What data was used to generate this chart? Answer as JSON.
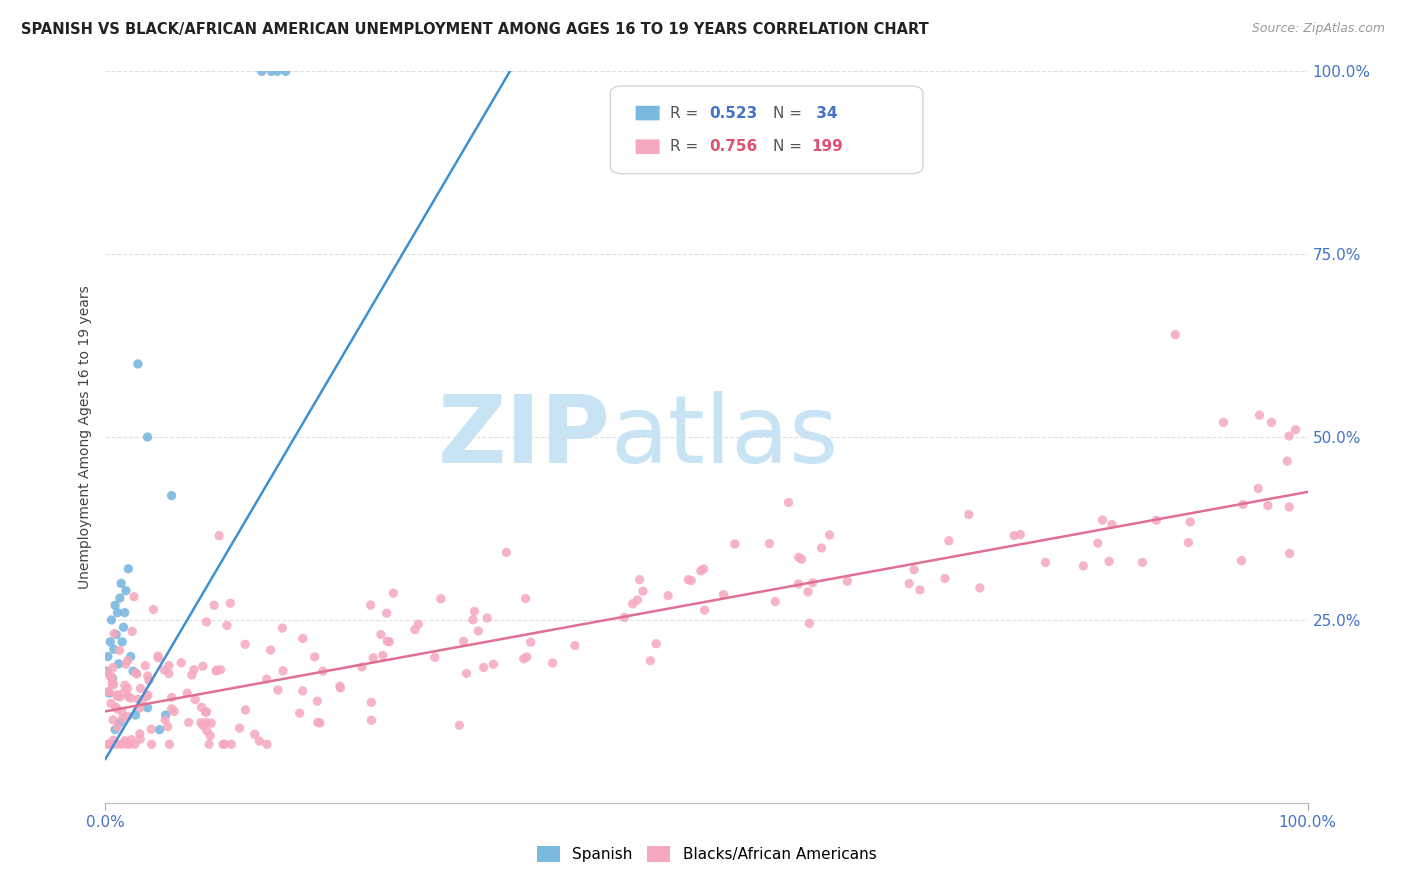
{
  "title": "SPANISH VS BLACK/AFRICAN AMERICAN UNEMPLOYMENT AMONG AGES 16 TO 19 YEARS CORRELATION CHART",
  "source": "Source: ZipAtlas.com",
  "ylabel": "Unemployment Among Ages 16 to 19 years",
  "xlim": [
    0,
    1
  ],
  "ylim": [
    0,
    1
  ],
  "legend_R_spanish": "0.523",
  "legend_N_spanish": "34",
  "legend_R_black": "0.756",
  "legend_N_black": "199",
  "spanish_color": "#7ab8e0",
  "black_color": "#f5a8be",
  "spanish_line_color": "#4090d0",
  "black_line_color": "#e07090",
  "blue_tick_color": "#4472c4",
  "watermark_color": "#c8e4f4",
  "grid_color": "#e0e0e0",
  "title_color": "#222222",
  "source_color": "#999999",
  "sp_line_x0": 0.0,
  "sp_line_y0": 0.06,
  "sp_line_x1": 0.34,
  "sp_line_y1": 1.01,
  "bl_line_x0": 0.0,
  "bl_line_y0": 0.125,
  "bl_line_x1": 1.0,
  "bl_line_y1": 0.425
}
